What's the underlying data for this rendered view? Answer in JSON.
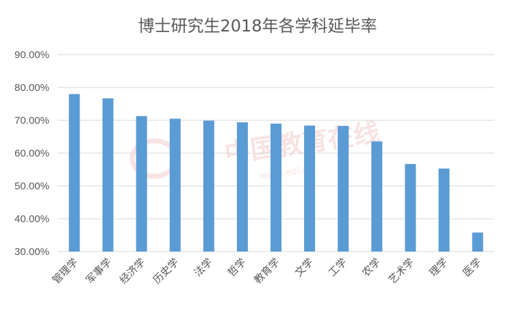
{
  "chart_data": {
    "type": "bar",
    "title": "博士研究生2018年各学科延毕率",
    "categories": [
      "管理学",
      "军事学",
      "经济学",
      "历史学",
      "法学",
      "哲学",
      "教育学",
      "文学",
      "工学",
      "农学",
      "艺术学",
      "理学",
      "医学"
    ],
    "values": [
      78.0,
      76.7,
      71.3,
      70.5,
      69.9,
      69.4,
      69.0,
      68.4,
      68.3,
      63.6,
      56.7,
      55.3,
      35.8
    ],
    "yticks": [
      "30.00%",
      "40.00%",
      "50.00%",
      "60.00%",
      "70.00%",
      "80.00%",
      "90.00%"
    ],
    "ylim": [
      30,
      90
    ],
    "grid": true,
    "legend": "none",
    "colors": {
      "bar": "#5b9bd5",
      "grid": "#d9d9d9",
      "text": "#595959"
    }
  },
  "watermark": {
    "brand": "中国教育在线",
    "url": "www.eol.cn"
  }
}
